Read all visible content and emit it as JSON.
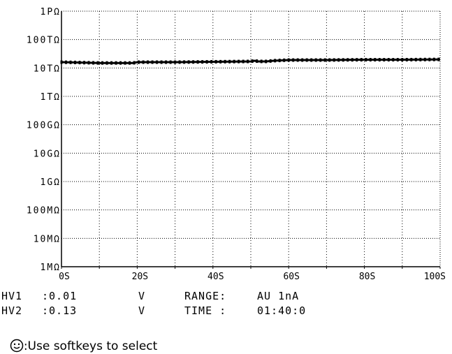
{
  "chart_data": {
    "type": "line",
    "y_axis_scale": "log",
    "y_ticks": [
      "1PΩ",
      "100TΩ",
      "10TΩ",
      "1TΩ",
      "100GΩ",
      "10GΩ",
      "1GΩ",
      "100MΩ",
      "10MΩ",
      "1MΩ"
    ],
    "x_ticks": [
      "0S",
      "20S",
      "40S",
      "60S",
      "80S",
      "100S"
    ],
    "xlim": [
      0,
      100
    ],
    "ylim_ohm": [
      1000000.0,
      1000000000000000.0
    ],
    "grid": true,
    "series": [
      {
        "color": "#000000",
        "x": [
          0,
          10,
          19,
          20,
          30,
          40,
          50,
          51,
          52,
          54,
          56,
          60,
          70,
          80,
          90,
          100
        ],
        "y_ohm": [
          16000000000000.0,
          15000000000000.0,
          15000000000000.0,
          16000000000000.0,
          16000000000000.0,
          16500000000000.0,
          17000000000000.0,
          18000000000000.0,
          17000000000000.0,
          17000000000000.0,
          18000000000000.0,
          19000000000000.0,
          19000000000000.0,
          19500000000000.0,
          19500000000000.0,
          20000000000000.0
        ]
      }
    ]
  },
  "status": {
    "hv1_label": "HV1",
    "hv1_value": ":0.01",
    "hv1_unit": "V",
    "hv2_label": "HV2",
    "hv2_value": ":0.13",
    "hv2_unit": "V",
    "range_label": "RANGE:",
    "range_value": "AU 1nA",
    "time_label": "TIME :",
    "time_value": "01:40:0"
  },
  "hint": {
    "icon": "smiley-face-icon",
    "text": ":Use softkeys to select"
  }
}
